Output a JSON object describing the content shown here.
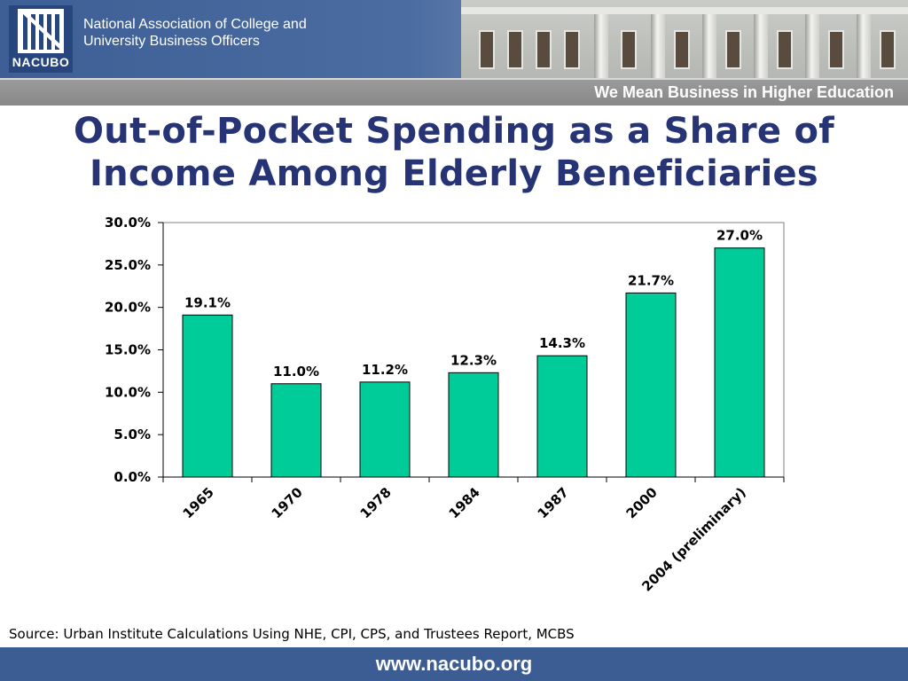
{
  "header": {
    "logo_text": "NACUBO",
    "org_name_line1": "National Association of College and",
    "org_name_line2": "University Business Officers",
    "tagline": "We Mean Business in Higher Education"
  },
  "slide": {
    "title_line1": "Out-of-Pocket Spending as a Share of",
    "title_line2": "Income Among Elderly Beneficiaries",
    "source": "Source: Urban Institute Calculations Using NHE, CPI, CPS, and Trustees Report, MCBS"
  },
  "footer": {
    "url": "www.nacubo.org"
  },
  "colors": {
    "bar": "#00cc99",
    "title": "#263375",
    "footer": "#3c5d93"
  },
  "chart_data": {
    "type": "bar",
    "title": "",
    "xlabel": "",
    "ylabel": "",
    "categories": [
      "1965",
      "1970",
      "1978",
      "1984",
      "1987",
      "2000",
      "2004 (preliminary)"
    ],
    "values": [
      19.1,
      11.0,
      11.2,
      12.3,
      14.3,
      21.7,
      27.0
    ],
    "data_labels": [
      "19.1%",
      "11.0%",
      "11.2%",
      "12.3%",
      "14.3%",
      "21.7%",
      "27.0%"
    ],
    "ylim": [
      0,
      30
    ],
    "yticks": [
      0,
      5,
      10,
      15,
      20,
      25,
      30
    ],
    "ytick_labels": [
      "0.0%",
      "5.0%",
      "10.0%",
      "15.0%",
      "20.0%",
      "25.0%",
      "30.0%"
    ],
    "grid": false,
    "legend": "none"
  }
}
